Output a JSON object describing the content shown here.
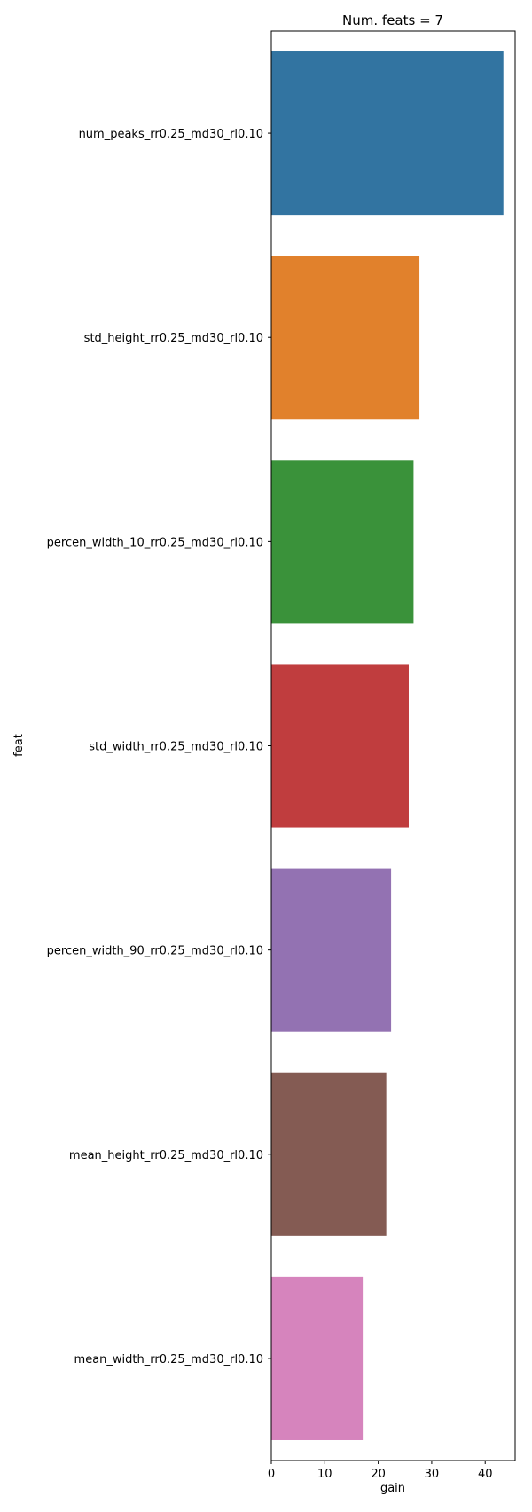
{
  "chart_data": {
    "type": "bar",
    "orientation": "horizontal",
    "title": "Num. feats = 7",
    "xlabel": "gain",
    "ylabel": "feat",
    "categories": [
      "num_peaks_rr0.25_md30_rl0.10",
      "std_height_rr0.25_md30_rl0.10",
      "percen_width_10_rr0.25_md30_rl0.10",
      "std_width_rr0.25_md30_rl0.10",
      "percen_width_90_rr0.25_md30_rl0.10",
      "mean_height_rr0.25_md30_rl0.10",
      "mean_width_rr0.25_md30_rl0.10"
    ],
    "values": [
      43.4,
      27.7,
      26.6,
      25.7,
      22.4,
      21.5,
      17.1
    ],
    "colors": [
      "#3274a1",
      "#e1812c",
      "#3a923a",
      "#c03d3e",
      "#9372b2",
      "#845b53",
      "#d684bd"
    ],
    "xlim": [
      0,
      45.6
    ],
    "xticks": [
      0,
      10,
      20,
      30,
      40
    ],
    "grid": false,
    "legend": "none"
  }
}
